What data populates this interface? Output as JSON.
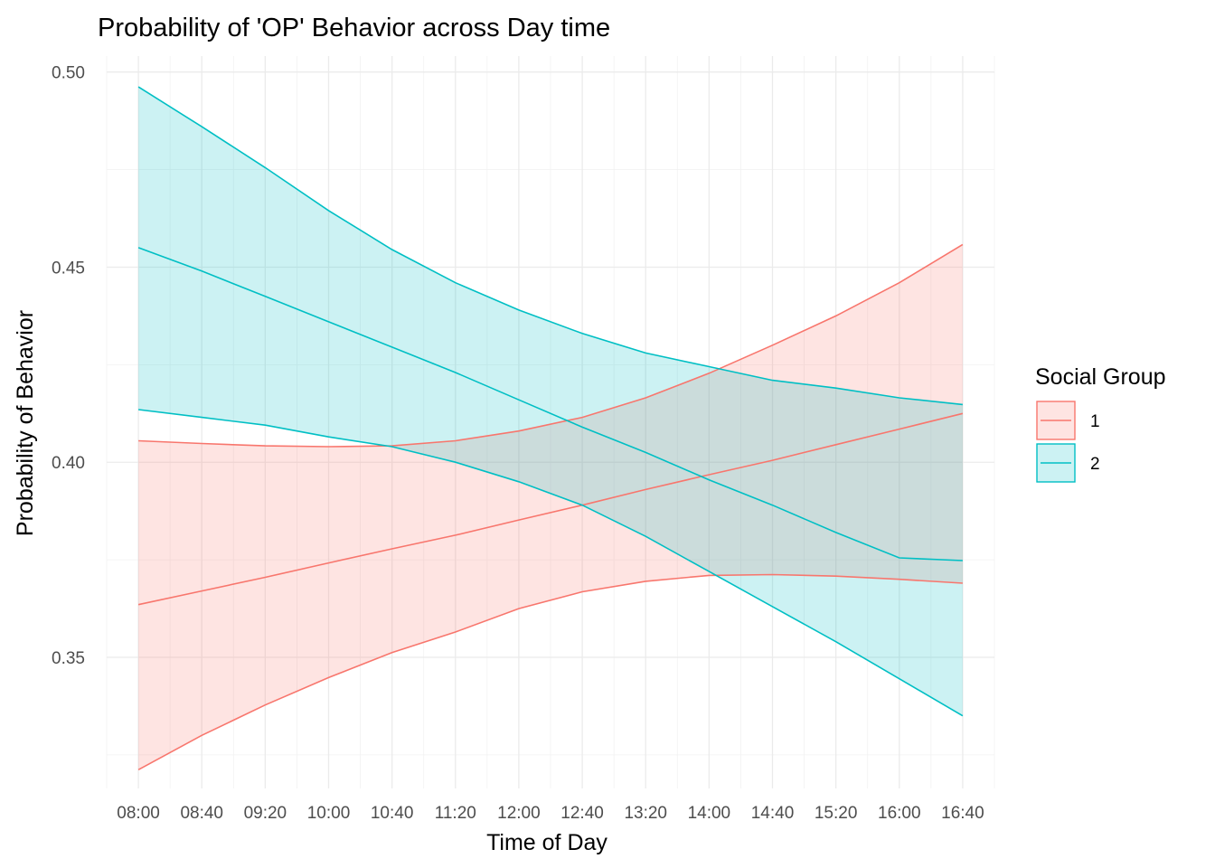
{
  "chart_data": {
    "type": "line",
    "title": "Probability of 'OP' Behavior across Day time",
    "xlabel": "Time of Day",
    "ylabel": "Probability of Behavior",
    "x_ticks": [
      "08:00",
      "08:40",
      "09:20",
      "10:00",
      "10:40",
      "11:20",
      "12:00",
      "12:40",
      "13:20",
      "14:00",
      "14:40",
      "15:20",
      "16:00",
      "16:40"
    ],
    "x_minutes": [
      0,
      40,
      80,
      120,
      160,
      200,
      240,
      280,
      320,
      360,
      400,
      440,
      480,
      520
    ],
    "xlim_minutes": [
      -20,
      540
    ],
    "y_ticks": [
      0.35,
      0.4,
      0.45,
      0.5
    ],
    "y_tick_labels": [
      "0.35",
      "0.40",
      "0.45",
      "0.50"
    ],
    "ylim": [
      0.3164,
      0.5041
    ],
    "grid": true,
    "legend": {
      "title": "Social Group",
      "position": "right"
    },
    "series": [
      {
        "name": "1",
        "color": "#F8766D",
        "fill": "#F8766D",
        "x": [
          0,
          40,
          80,
          120,
          160,
          200,
          240,
          280,
          320,
          360,
          400,
          440,
          480,
          520
        ],
        "mean": [
          0.3635,
          0.367,
          0.3705,
          0.3742,
          0.3778,
          0.3813,
          0.3852,
          0.389,
          0.393,
          0.3968,
          0.4005,
          0.4045,
          0.4085,
          0.4125
        ],
        "lower": [
          0.3212,
          0.33,
          0.3378,
          0.3448,
          0.3512,
          0.3565,
          0.3625,
          0.3668,
          0.3695,
          0.371,
          0.3712,
          0.3708,
          0.37,
          0.369
        ],
        "upper": [
          0.4055,
          0.4048,
          0.4042,
          0.404,
          0.4042,
          0.4055,
          0.408,
          0.4115,
          0.4165,
          0.4228,
          0.43,
          0.4375,
          0.446,
          0.4558
        ]
      },
      {
        "name": "2",
        "color": "#00BFC4",
        "fill": "#00BFC4",
        "x": [
          0,
          40,
          80,
          120,
          160,
          200,
          240,
          280,
          320,
          360,
          400,
          440,
          480,
          520
        ],
        "mean": [
          0.455,
          0.449,
          0.4425,
          0.436,
          0.4295,
          0.423,
          0.416,
          0.409,
          0.4025,
          0.3955,
          0.389,
          0.382,
          0.3755,
          0.3748
        ],
        "lower": [
          0.4135,
          0.4115,
          0.4095,
          0.4065,
          0.404,
          0.4,
          0.395,
          0.389,
          0.381,
          0.372,
          0.363,
          0.354,
          0.3445,
          0.335
        ],
        "upper": [
          0.4962,
          0.486,
          0.4755,
          0.4645,
          0.4545,
          0.446,
          0.439,
          0.433,
          0.428,
          0.4245,
          0.421,
          0.419,
          0.4165,
          0.4148
        ]
      }
    ]
  }
}
